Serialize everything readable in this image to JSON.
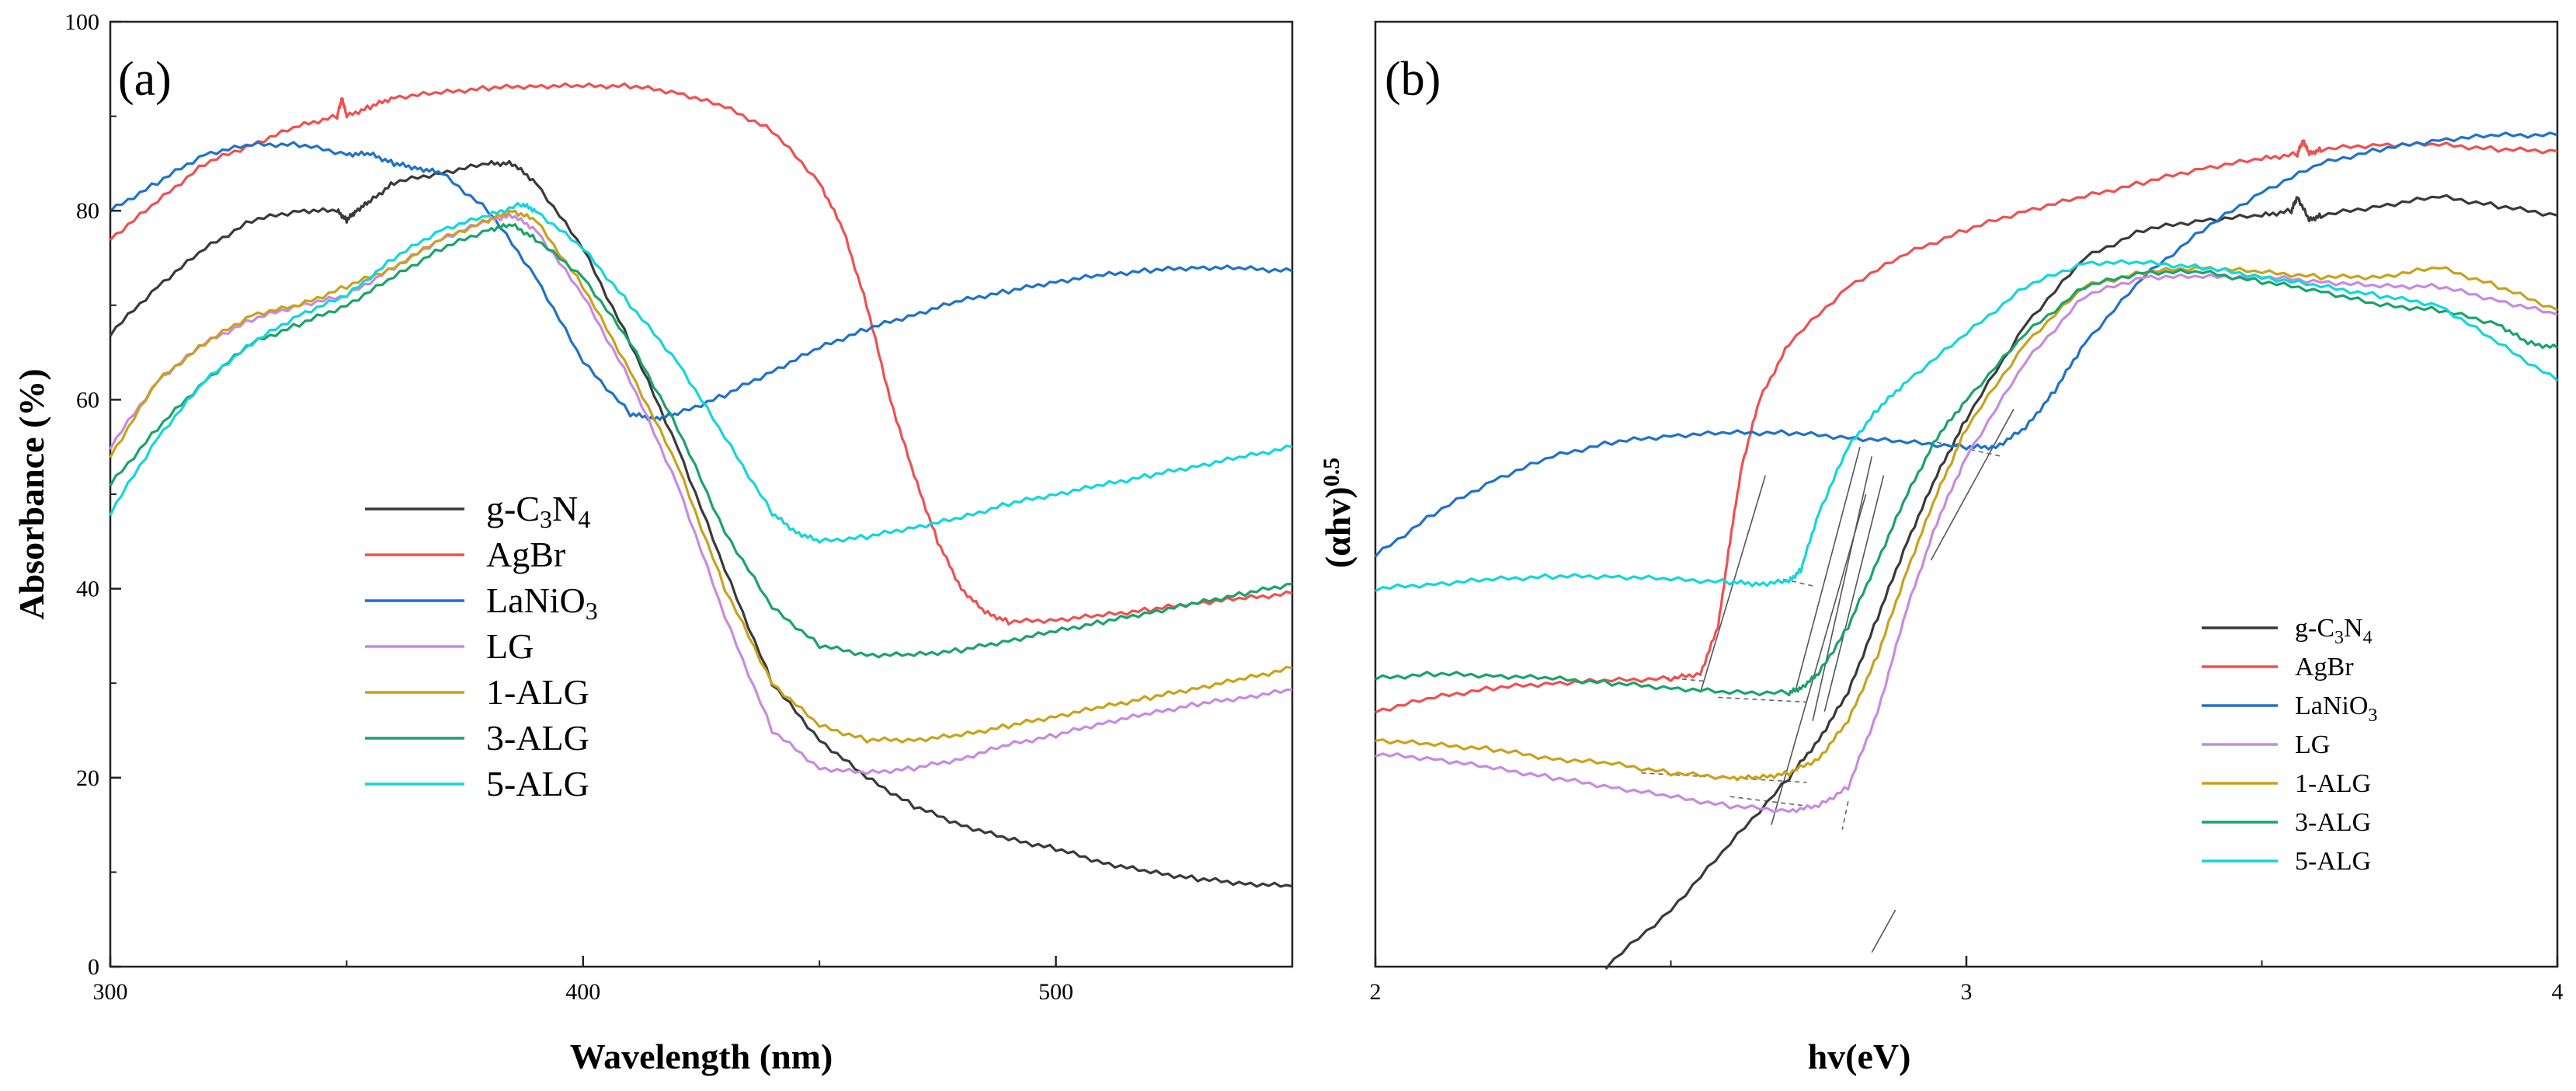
{
  "colors": {
    "g-C3N4": "#3a3a3a",
    "AgBr": "#ef5050",
    "LaNiO3": "#1f72c8",
    "LG": "#c88ae0",
    "1-ALG": "#c9a21a",
    "3-ALG": "#19a36b",
    "5-ALG": "#12d6dc"
  },
  "chart_data": [
    {
      "type": "line",
      "panel_label": "(a)",
      "xlabel": "Wavelength (nm)",
      "ylabel": "Absorbance (%)",
      "xlim": [
        300,
        550
      ],
      "ylim": [
        0,
        100
      ],
      "xticks": [
        "300",
        "400",
        "500"
      ],
      "yticks": [
        "0",
        "20",
        "40",
        "60",
        "80",
        "100"
      ],
      "legend": [
        {
          "key": "g-C3N4",
          "base": "g-C",
          "sub1": "3",
          "mid": "N",
          "sub2": "4"
        },
        {
          "key": "AgBr",
          "base": "AgBr"
        },
        {
          "key": "LaNiO3",
          "base": "LaNiO",
          "sub1": "3"
        },
        {
          "key": "LG",
          "base": "LG"
        },
        {
          "key": "1-ALG",
          "base": "1-ALG"
        },
        {
          "key": "3-ALG",
          "base": "3-ALG"
        },
        {
          "key": "5-ALG",
          "base": "5-ALG"
        }
      ],
      "series": [
        {
          "name": "g-C3N4",
          "x": [
            300,
            310,
            320,
            330,
            340,
            348,
            350,
            352,
            355,
            360,
            370,
            380,
            385,
            390,
            400,
            410,
            420,
            430,
            440,
            450,
            460,
            470,
            480,
            490,
            500,
            510,
            520,
            530,
            540,
            550
          ],
          "y": [
            67,
            72,
            76,
            79,
            80,
            80,
            79,
            80,
            81,
            83,
            84,
            85,
            85,
            83,
            76,
            66,
            55,
            42,
            30,
            24,
            20,
            17,
            15,
            13.5,
            12.5,
            11,
            10,
            9.3,
            8.8,
            8.5
          ]
        },
        {
          "name": "AgBr",
          "x": [
            300,
            310,
            320,
            330,
            340,
            348,
            349,
            350,
            355,
            360,
            370,
            380,
            390,
            400,
            410,
            420,
            430,
            440,
            450,
            455,
            460,
            465,
            470,
            475,
            480,
            485,
            490,
            500,
            510,
            520,
            530,
            540,
            550
          ],
          "y": [
            77,
            81,
            85,
            87,
            89,
            90,
            92,
            90,
            91,
            92,
            92.5,
            93,
            93.2,
            93.2,
            93.2,
            92.5,
            91,
            88.5,
            83,
            78,
            70,
            60,
            52,
            45,
            40,
            37.5,
            36.5,
            36.7,
            37.2,
            37.8,
            38.5,
            39,
            39.5
          ]
        },
        {
          "name": "LaNiO3",
          "x": [
            300,
            310,
            320,
            330,
            340,
            350,
            355,
            360,
            365,
            370,
            380,
            390,
            400,
            410,
            415,
            420,
            430,
            440,
            450,
            460,
            470,
            480,
            490,
            500,
            510,
            520,
            530,
            540,
            550
          ],
          "y": [
            80,
            83,
            86,
            87,
            87,
            86,
            86,
            85,
            84.5,
            84,
            80,
            73,
            64,
            58.5,
            58,
            58.5,
            60.5,
            63,
            65.5,
            67.5,
            69,
            70.5,
            71.5,
            72.5,
            73.2,
            73.7,
            74,
            73.9,
            73.6
          ]
        },
        {
          "name": "LG",
          "x": [
            300,
            310,
            320,
            330,
            340,
            350,
            360,
            370,
            380,
            385,
            390,
            400,
            410,
            420,
            430,
            440,
            450,
            460,
            470,
            480,
            490,
            500,
            510,
            520,
            530,
            540,
            550
          ],
          "y": [
            55,
            62,
            66,
            68.5,
            70,
            71,
            74,
            77,
            79,
            79.5,
            78,
            71,
            62,
            51,
            37,
            25,
            21,
            20.5,
            21,
            22,
            23.5,
            24.5,
            25.8,
            26.8,
            27.8,
            28.5,
            29.3
          ]
        },
        {
          "name": "1-ALG",
          "x": [
            300,
            310,
            320,
            330,
            340,
            350,
            360,
            370,
            380,
            385,
            390,
            400,
            410,
            420,
            430,
            440,
            450,
            460,
            470,
            480,
            490,
            500,
            510,
            520,
            530,
            540,
            550
          ],
          "y": [
            54,
            62,
            66,
            69,
            70,
            72,
            74,
            77,
            79,
            80,
            79,
            72,
            63,
            53,
            40,
            30,
            25.5,
            24,
            24,
            24.5,
            25.5,
            26.5,
            27.5,
            28.5,
            29.5,
            30.5,
            31.6
          ]
        },
        {
          "name": "3-ALG",
          "x": [
            300,
            310,
            320,
            330,
            340,
            350,
            360,
            370,
            380,
            385,
            390,
            400,
            410,
            420,
            430,
            440,
            450,
            460,
            470,
            480,
            490,
            500,
            510,
            520,
            530,
            540,
            550
          ],
          "y": [
            51,
            57,
            62,
            66,
            68,
            70,
            73,
            76,
            78,
            78.5,
            77,
            73,
            66,
            57,
            46,
            38,
            34,
            33,
            33,
            33.5,
            34.5,
            35.5,
            36.5,
            37.5,
            38.5,
            39.5,
            40.5
          ]
        },
        {
          "name": "5-ALG",
          "x": [
            300,
            310,
            320,
            330,
            340,
            350,
            360,
            370,
            380,
            387,
            390,
            400,
            410,
            420,
            430,
            440,
            445,
            450,
            460,
            470,
            480,
            490,
            500,
            510,
            520,
            530,
            540,
            550
          ],
          "y": [
            48,
            56,
            62,
            66,
            69,
            71,
            75,
            78,
            79.5,
            80.7,
            80,
            76,
            70,
            64,
            56,
            48,
            46,
            45,
            45.5,
            46.5,
            47.5,
            49,
            50,
            51,
            52,
            53,
            54,
            55
          ]
        }
      ]
    },
    {
      "type": "line",
      "panel_label": "(b)",
      "xlabel": "hv(eV)",
      "ylabel": "(αhv)0.5",
      "ylabel_base": "(αhv)",
      "ylabel_exp": "0.5",
      "xlim": [
        2,
        4
      ],
      "ylim": [
        0,
        100
      ],
      "xticks": [
        "2",
        "3",
        "4"
      ],
      "yticks": [],
      "legend": [
        {
          "key": "g-C3N4",
          "base": "g-C",
          "sub1": "3",
          "mid": "N",
          "sub2": "4"
        },
        {
          "key": "AgBr",
          "base": "AgBr"
        },
        {
          "key": "LaNiO3",
          "base": "LaNiO",
          "sub1": "3"
        },
        {
          "key": "LG",
          "base": "LG"
        },
        {
          "key": "1-ALG",
          "base": "1-ALG"
        },
        {
          "key": "3-ALG",
          "base": "3-ALG"
        },
        {
          "key": "5-ALG",
          "base": "5-ALG"
        }
      ],
      "series": [
        {
          "name": "g-C3N4",
          "x": [
            2.39,
            2.5,
            2.6,
            2.7,
            2.75,
            2.8,
            2.85,
            2.9,
            2.95,
            3.0,
            3.1,
            3.2,
            3.3,
            3.4,
            3.5,
            3.55,
            3.56,
            3.58,
            3.6,
            3.7,
            3.8,
            3.9,
            4.0
          ],
          "y": [
            0,
            6,
            13,
            20,
            24,
            29,
            37,
            45,
            52,
            58,
            68,
            75,
            78,
            79,
            79.5,
            80,
            81.5,
            79,
            79.5,
            80.5,
            81.5,
            80.5,
            79.5
          ]
        },
        {
          "name": "AgBr",
          "x": [
            2.0,
            2.1,
            2.2,
            2.3,
            2.4,
            2.5,
            2.55,
            2.58,
            2.6,
            2.62,
            2.65,
            2.7,
            2.8,
            2.9,
            3.0,
            3.1,
            3.2,
            3.3,
            3.4,
            3.5,
            3.56,
            3.57,
            3.58,
            3.6,
            3.7,
            3.8,
            3.9,
            4.0
          ],
          "y": [
            27,
            28.5,
            29.5,
            30,
            30.3,
            30.5,
            31,
            36,
            45,
            53,
            60,
            66,
            72,
            75.5,
            78,
            80,
            81.5,
            83,
            84.5,
            85.5,
            86,
            87.5,
            86,
            86.5,
            87,
            87,
            86.5,
            86.3
          ]
        },
        {
          "name": "LaNiO3",
          "x": [
            2.0,
            2.1,
            2.2,
            2.3,
            2.4,
            2.5,
            2.6,
            2.7,
            2.8,
            2.9,
            3.0,
            3.05,
            3.1,
            3.15,
            3.2,
            3.3,
            3.4,
            3.5,
            3.6,
            3.7,
            3.8,
            3.9,
            4.0
          ],
          "y": [
            43.5,
            48,
            51.5,
            54,
            55.5,
            56.2,
            56.5,
            56.5,
            56,
            55.5,
            55,
            55,
            57,
            61,
            66,
            73,
            78,
            82,
            85,
            86.5,
            87.5,
            88,
            88
          ]
        },
        {
          "name": "LG",
          "x": [
            2.0,
            2.1,
            2.2,
            2.3,
            2.4,
            2.5,
            2.6,
            2.7,
            2.75,
            2.8,
            2.85,
            2.9,
            2.95,
            3.0,
            3.1,
            3.2,
            3.3,
            3.4,
            3.5,
            3.6,
            3.7,
            3.8,
            3.9,
            4.0
          ],
          "y": [
            22.5,
            22,
            21,
            20,
            19,
            18,
            17,
            16.5,
            17,
            19,
            27,
            38,
            47,
            54,
            64,
            71,
            73,
            73,
            73,
            72.5,
            72,
            72,
            70.5,
            69
          ]
        },
        {
          "name": "1-ALG",
          "x": [
            2.0,
            2.1,
            2.2,
            2.3,
            2.4,
            2.5,
            2.6,
            2.65,
            2.7,
            2.75,
            2.8,
            2.85,
            2.9,
            2.95,
            3.0,
            3.1,
            3.2,
            3.3,
            3.4,
            3.5,
            3.6,
            3.7,
            3.8,
            3.9,
            4.0
          ],
          "y": [
            24,
            23.5,
            23,
            22,
            21.5,
            20.5,
            20,
            20,
            20.5,
            22,
            26,
            33,
            42,
            50,
            57,
            66,
            72,
            73.5,
            74,
            73.5,
            73,
            73,
            74,
            72,
            69.5
          ]
        },
        {
          "name": "3-ALG",
          "x": [
            2.0,
            2.1,
            2.2,
            2.3,
            2.4,
            2.5,
            2.6,
            2.7,
            2.72,
            2.75,
            2.8,
            2.85,
            2.9,
            2.95,
            3.0,
            3.1,
            3.2,
            3.3,
            3.4,
            3.5,
            3.6,
            3.7,
            3.8,
            3.9,
            3.95,
            4.0
          ],
          "y": [
            30.5,
            31,
            30.8,
            30.5,
            30,
            29.5,
            29,
            29,
            29.5,
            31,
            36,
            43,
            50,
            56,
            60,
            67,
            72,
            73.5,
            73.5,
            72.5,
            71.5,
            70,
            69.5,
            68,
            66,
            65.5
          ]
        },
        {
          "name": "5-ALG",
          "x": [
            2.0,
            2.1,
            2.2,
            2.3,
            2.4,
            2.5,
            2.6,
            2.65,
            2.7,
            2.72,
            2.75,
            2.8,
            2.85,
            2.9,
            3.0,
            3.1,
            3.2,
            3.3,
            3.4,
            3.5,
            3.6,
            3.7,
            3.8,
            3.9,
            4.0
          ],
          "y": [
            40,
            40.5,
            41,
            41.3,
            41.3,
            41,
            40.7,
            40.5,
            40.8,
            42,
            48,
            55,
            59,
            62,
            67,
            72,
            74.5,
            74.5,
            74,
            73,
            72,
            71,
            70,
            66,
            62
          ]
        }
      ]
    }
  ]
}
